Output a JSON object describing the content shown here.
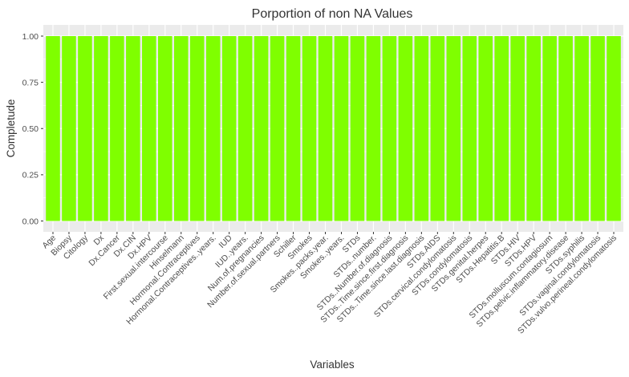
{
  "chart_data": {
    "type": "bar",
    "title": "Porportion of non NA Values",
    "xlabel": "Variables",
    "ylabel": "Completude",
    "ylim": [
      0,
      1
    ],
    "yticks": [
      "0.00",
      "0.25",
      "0.50",
      "0.75",
      "1.00"
    ],
    "grid": true,
    "bar_color": "#7FFF00",
    "panel_color": "#EBEBEB",
    "categories": [
      "Age",
      "Biopsy",
      "Citology",
      "Dx",
      "Dx.Cancer",
      "Dx.CIN",
      "Dx.HPV",
      "First.sexual.intercourse",
      "Hinselmann",
      "Hormonal.Contraceptives",
      "Hormonal.Contraceptives..years.",
      "IUD",
      "IUD..years.",
      "Num.of.pregnancies",
      "Number.of.sexual.partners",
      "Schiller",
      "Smokes",
      "Smokes..packs.year.",
      "Smokes..years.",
      "STDs",
      "STDs..number.",
      "STDs..Number.of.diagnosis",
      "STDs..Time.since.first.diagnosis",
      "STDs..Time.since.last.diagnosis",
      "STDs.AIDS",
      "STDs.cervical.condylomatosis",
      "STDs.condylomatosis",
      "STDs.genital.herpes",
      "STDs.Hepatitis.B",
      "STDs.HIV",
      "STDs.HPV",
      "STDs.molluscum.contagiosum",
      "STDs.pelvic.inflammatory.disease",
      "STDs.syphilis",
      "STDs.vaginal.condylomatosis",
      "STDs.vulvo.perineal.condylomatosis"
    ],
    "values": [
      1,
      1,
      1,
      1,
      1,
      1,
      1,
      1,
      1,
      1,
      1,
      1,
      1,
      1,
      1,
      1,
      1,
      1,
      1,
      1,
      1,
      1,
      1,
      1,
      1,
      1,
      1,
      1,
      1,
      1,
      1,
      1,
      1,
      1,
      1,
      1
    ]
  }
}
